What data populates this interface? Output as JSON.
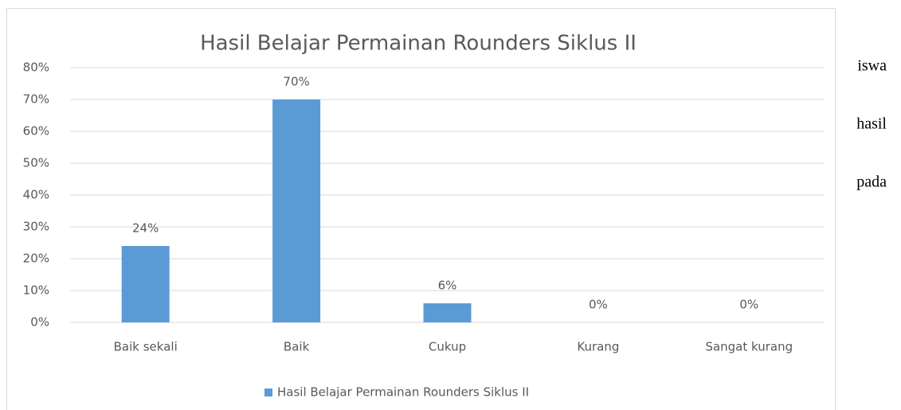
{
  "side_text": [
    "iswa",
    "hasil",
    "pada"
  ],
  "chart_data": {
    "type": "bar",
    "title": "Hasil Belajar Permainan Rounders Siklus II",
    "categories": [
      "Baik sekali",
      "Baik",
      "Cukup",
      "Kurang",
      "Sangat kurang"
    ],
    "series": [
      {
        "name": "Hasil Belajar Permainan Rounders Siklus II",
        "color": "#5b9bd5",
        "values": [
          24,
          70,
          6,
          0,
          0
        ],
        "value_labels": [
          "24%",
          "70%",
          "6%",
          "0%",
          "0%"
        ]
      }
    ],
    "ylim": [
      0,
      80
    ],
    "yticks": [
      {
        "value": 0,
        "label": "0%"
      },
      {
        "value": 10,
        "label": "10%"
      },
      {
        "value": 20,
        "label": "20%"
      },
      {
        "value": 30,
        "label": "30%"
      },
      {
        "value": 40,
        "label": "40%"
      },
      {
        "value": 50,
        "label": "50%"
      },
      {
        "value": 60,
        "label": "60%"
      },
      {
        "value": 70,
        "label": "70%"
      },
      {
        "value": 80,
        "label": "80%"
      }
    ],
    "grid": true,
    "legend": "bottom"
  }
}
